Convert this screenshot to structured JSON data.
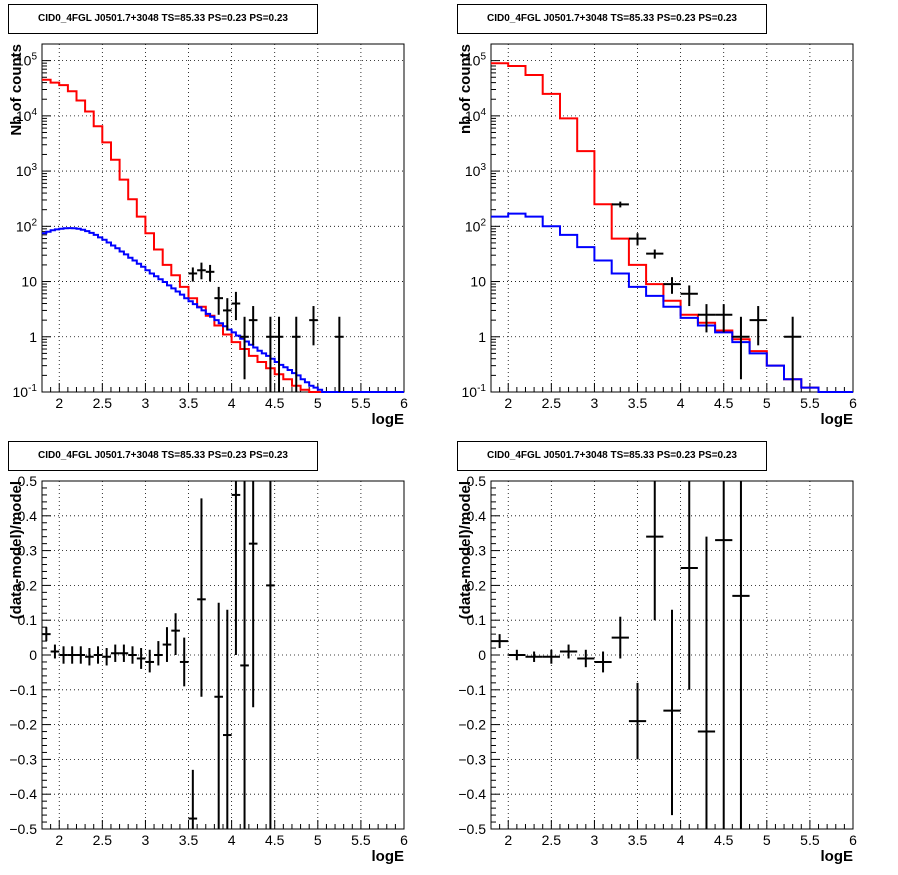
{
  "chart_data": [
    {
      "type": "line",
      "title": "CID0_4FGL J0501.7+3048 TS=85.33 PS=0.23 PS=0.23",
      "xlabel": "logE",
      "ylabel": "Nb of counts",
      "xlim": [
        1.8,
        6
      ],
      "ylim": [
        0.1,
        200000
      ],
      "yscale": "log",
      "grid": true,
      "xticks": [
        "2",
        "2.5",
        "3",
        "3.5",
        "4",
        "4.5",
        "5",
        "5.5",
        "6"
      ],
      "yticks": [
        "10^-1",
        "1",
        "10",
        "10^2",
        "10^3",
        "10^4",
        "10^5"
      ],
      "series": [
        {
          "color": "#ff0000",
          "style": "step",
          "bin_width": 0.1,
          "x": [
            1.8,
            1.9,
            2.0,
            2.1,
            2.2,
            2.3,
            2.4,
            2.5,
            2.6,
            2.7,
            2.8,
            2.9,
            3.0,
            3.1,
            3.2,
            3.3,
            3.4,
            3.5,
            3.6,
            3.7,
            3.8,
            3.9,
            4.0,
            4.1,
            4.2,
            4.3,
            4.4,
            4.5,
            4.6,
            4.7,
            4.8,
            4.9,
            5.0,
            5.1,
            5.2,
            5.3,
            5.4,
            5.5,
            5.6,
            5.7,
            5.8,
            5.9
          ],
          "y": [
            45000,
            40000,
            36000,
            28000,
            19000,
            12000,
            6500,
            3300,
            1600,
            700,
            310,
            150,
            75,
            38,
            20,
            13,
            8,
            5,
            3.5,
            2.4,
            1.6,
            1.1,
            0.8,
            0.6,
            0.45,
            0.35,
            0.27,
            0.21,
            0.17,
            0.13,
            0.11,
            0.1,
            0.1,
            0.1,
            0.1,
            0.1,
            0.1,
            0.1,
            0.1,
            0.1,
            0.1,
            0.1
          ]
        },
        {
          "color": "#0000ff",
          "style": "step",
          "bin_width": 0.05,
          "x": [
            1.8,
            1.85,
            1.9,
            1.95,
            2.0,
            2.05,
            2.1,
            2.15,
            2.2,
            2.25,
            2.3,
            2.35,
            2.4,
            2.45,
            2.5,
            2.55,
            2.6,
            2.65,
            2.7,
            2.75,
            2.8,
            2.85,
            2.9,
            2.95,
            3.0,
            3.05,
            3.1,
            3.15,
            3.2,
            3.25,
            3.3,
            3.35,
            3.4,
            3.45,
            3.5,
            3.55,
            3.6,
            3.65,
            3.7,
            3.75,
            3.8,
            3.85,
            3.9,
            3.95,
            4.0,
            4.05,
            4.1,
            4.15,
            4.2,
            4.25,
            4.3,
            4.35,
            4.4,
            4.45,
            4.5,
            4.55,
            4.6,
            4.65,
            4.7,
            4.75,
            4.8,
            4.85,
            4.9,
            4.95,
            5.0,
            5.05,
            5.1,
            5.15,
            5.2,
            5.25,
            5.3,
            5.35,
            5.4,
            5.45,
            5.5,
            5.55,
            5.6,
            5.65,
            5.7,
            5.75,
            5.8,
            5.85,
            5.9,
            5.95
          ],
          "y": [
            75,
            80,
            85,
            88,
            90,
            92,
            93,
            92,
            90,
            87,
            82,
            76,
            70,
            63,
            57,
            51,
            45,
            40,
            35,
            31,
            27,
            24,
            21,
            18.5,
            16,
            14,
            12.5,
            11,
            9.8,
            8.5,
            7.5,
            6.6,
            5.8,
            5,
            4.4,
            3.9,
            3.4,
            3,
            2.6,
            2.3,
            2,
            1.75,
            1.55,
            1.35,
            1.2,
            1.05,
            0.92,
            0.82,
            0.72,
            0.64,
            0.56,
            0.5,
            0.45,
            0.4,
            0.35,
            0.31,
            0.28,
            0.25,
            0.22,
            0.2,
            0.17,
            0.15,
            0.13,
            0.12,
            0.11,
            0.1,
            0.1,
            0.1,
            0.1,
            0.1,
            0.1,
            0.1,
            0.1,
            0.1,
            0.1,
            0.1,
            0.1,
            0.1,
            0.1,
            0.1,
            0.1,
            0.1,
            0.1,
            0.1
          ]
        }
      ],
      "points": [
        {
          "x": 3.55,
          "y": 14,
          "ylo": 10,
          "yhi": 18,
          "xerr": 0.05
        },
        {
          "x": 3.65,
          "y": 16,
          "ylo": 11,
          "yhi": 22,
          "xerr": 0.05
        },
        {
          "x": 3.75,
          "y": 15,
          "ylo": 10,
          "yhi": 20,
          "xerr": 0.05
        },
        {
          "x": 3.85,
          "y": 5,
          "ylo": 2.5,
          "yhi": 8,
          "xerr": 0.05
        },
        {
          "x": 3.95,
          "y": 3,
          "ylo": 1.3,
          "yhi": 5,
          "xerr": 0.05
        },
        {
          "x": 4.05,
          "y": 4,
          "ylo": 2,
          "yhi": 6.5,
          "xerr": 0.05
        },
        {
          "x": 4.15,
          "y": 1,
          "ylo": 0.17,
          "yhi": 2.3,
          "xerr": 0.05
        },
        {
          "x": 4.25,
          "y": 2,
          "ylo": 0.7,
          "yhi": 3.6,
          "xerr": 0.05
        },
        {
          "x": 4.45,
          "y": 1,
          "ylo": 0.1,
          "yhi": 2.3,
          "xerr": 0.05
        },
        {
          "x": 4.55,
          "y": 1,
          "ylo": 0.1,
          "yhi": 2.3,
          "xerr": 0.05
        },
        {
          "x": 4.75,
          "y": 1,
          "ylo": 0.1,
          "yhi": 2.3,
          "xerr": 0.05
        },
        {
          "x": 4.95,
          "y": 2,
          "ylo": 0.7,
          "yhi": 3.6,
          "xerr": 0.05
        },
        {
          "x": 5.25,
          "y": 1,
          "ylo": 0.1,
          "yhi": 2.3,
          "xerr": 0.05
        }
      ]
    },
    {
      "type": "line",
      "title": "CID0_4FGL J0501.7+3048 TS=85.33 PS=0.23 PS=0.23",
      "xlabel": "logE",
      "ylabel": "nb of counts",
      "xlim": [
        1.8,
        6
      ],
      "ylim": [
        0.1,
        200000
      ],
      "yscale": "log",
      "grid": true,
      "xticks": [
        "2",
        "2.5",
        "3",
        "3.5",
        "4",
        "4.5",
        "5",
        "5.5",
        "6"
      ],
      "yticks": [
        "10^-1",
        "1",
        "10",
        "10^2",
        "10^3",
        "10^4",
        "10^5"
      ],
      "series": [
        {
          "color": "#ff0000",
          "style": "step",
          "bin_width": 0.2,
          "x": [
            1.8,
            2.0,
            2.2,
            2.4,
            2.6,
            2.8,
            3.0,
            3.2,
            3.4,
            3.6,
            3.8,
            4.0,
            4.2,
            4.4,
            4.6,
            4.8,
            5.0,
            5.2,
            5.4,
            5.6,
            5.8
          ],
          "y": [
            90000,
            80000,
            55000,
            25000,
            9000,
            2300,
            250,
            60,
            20,
            9,
            4.5,
            2.5,
            1.8,
            1.3,
            0.9,
            0.55,
            0.3,
            0.17,
            0.12,
            0.1,
            0.1
          ]
        },
        {
          "color": "#0000ff",
          "style": "step",
          "bin_width": 0.2,
          "x": [
            1.8,
            2.0,
            2.2,
            2.4,
            2.6,
            2.8,
            3.0,
            3.2,
            3.4,
            3.6,
            3.8,
            4.0,
            4.2,
            4.4,
            4.6,
            4.8,
            5.0,
            5.2,
            5.4,
            5.6,
            5.8
          ],
          "y": [
            150,
            170,
            150,
            100,
            70,
            42,
            24,
            14,
            8,
            5.5,
            3.5,
            2.2,
            1.6,
            1.2,
            0.8,
            0.5,
            0.3,
            0.17,
            0.12,
            0.1,
            0.1
          ]
        }
      ],
      "points": [
        {
          "x": 3.3,
          "y": 250,
          "ylo": 220,
          "yhi": 280,
          "xerr": 0.1
        },
        {
          "x": 3.5,
          "y": 60,
          "ylo": 45,
          "yhi": 75,
          "xerr": 0.1
        },
        {
          "x": 3.7,
          "y": 32,
          "ylo": 26,
          "yhi": 38,
          "xerr": 0.1
        },
        {
          "x": 3.9,
          "y": 9,
          "ylo": 6,
          "yhi": 12,
          "xerr": 0.1
        },
        {
          "x": 4.1,
          "y": 6,
          "ylo": 3.6,
          "yhi": 8.5,
          "xerr": 0.1
        },
        {
          "x": 4.3,
          "y": 2.5,
          "ylo": 1.2,
          "yhi": 3.9,
          "xerr": 0.1
        },
        {
          "x": 4.5,
          "y": 2.5,
          "ylo": 1.2,
          "yhi": 3.9,
          "xerr": 0.1
        },
        {
          "x": 4.7,
          "y": 1,
          "ylo": 0.17,
          "yhi": 2.3,
          "xerr": 0.1
        },
        {
          "x": 4.9,
          "y": 2,
          "ylo": 0.7,
          "yhi": 3.6,
          "xerr": 0.1
        },
        {
          "x": 5.3,
          "y": 1,
          "ylo": 0.1,
          "yhi": 2.3,
          "xerr": 0.1
        }
      ]
    },
    {
      "type": "scatter",
      "title": "CID0_4FGL J0501.7+3048 TS=85.33 PS=0.23 PS=0.23",
      "xlabel": "logE",
      "ylabel": "(data-model)/model",
      "xlim": [
        1.8,
        6
      ],
      "ylim": [
        -0.5,
        0.5
      ],
      "grid": true,
      "xticks": [
        "2",
        "2.5",
        "3",
        "3.5",
        "4",
        "4.5",
        "5",
        "5.5",
        "6"
      ],
      "yticks": [
        "-0.5",
        "-0.4",
        "-0.3",
        "-0.2",
        "-0.1",
        "0",
        "0.1",
        "0.2",
        "0.3",
        "0.4",
        "0.5"
      ],
      "points": [
        {
          "x": 1.85,
          "y": 0.06,
          "ylo": 0.04,
          "yhi": 0.08,
          "xerr": 0.05
        },
        {
          "x": 1.95,
          "y": 0.01,
          "ylo": -0.01,
          "yhi": 0.03,
          "xerr": 0.05
        },
        {
          "x": 2.05,
          "y": 0.0,
          "ylo": -0.025,
          "yhi": 0.025,
          "xerr": 0.05
        },
        {
          "x": 2.15,
          "y": 0.0,
          "ylo": -0.025,
          "yhi": 0.025,
          "xerr": 0.05
        },
        {
          "x": 2.25,
          "y": 0.0,
          "ylo": -0.025,
          "yhi": 0.025,
          "xerr": 0.05
        },
        {
          "x": 2.35,
          "y": -0.005,
          "ylo": -0.03,
          "yhi": 0.02,
          "xerr": 0.05
        },
        {
          "x": 2.45,
          "y": 0.0,
          "ylo": -0.025,
          "yhi": 0.025,
          "xerr": 0.05
        },
        {
          "x": 2.55,
          "y": -0.005,
          "ylo": -0.03,
          "yhi": 0.02,
          "xerr": 0.05
        },
        {
          "x": 2.65,
          "y": 0.005,
          "ylo": -0.02,
          "yhi": 0.03,
          "xerr": 0.05
        },
        {
          "x": 2.75,
          "y": 0.005,
          "ylo": -0.02,
          "yhi": 0.03,
          "xerr": 0.05
        },
        {
          "x": 2.85,
          "y": 0.0,
          "ylo": -0.025,
          "yhi": 0.025,
          "xerr": 0.05
        },
        {
          "x": 2.95,
          "y": -0.01,
          "ylo": -0.04,
          "yhi": 0.02,
          "xerr": 0.05
        },
        {
          "x": 3.05,
          "y": -0.02,
          "ylo": -0.05,
          "yhi": 0.015,
          "xerr": 0.05
        },
        {
          "x": 3.15,
          "y": 0.0,
          "ylo": -0.03,
          "yhi": 0.04,
          "xerr": 0.05
        },
        {
          "x": 3.25,
          "y": 0.03,
          "ylo": -0.02,
          "yhi": 0.08,
          "xerr": 0.05
        },
        {
          "x": 3.35,
          "y": 0.07,
          "ylo": 0.0,
          "yhi": 0.12,
          "xerr": 0.05
        },
        {
          "x": 3.45,
          "y": -0.02,
          "ylo": -0.09,
          "yhi": 0.05,
          "xerr": 0.05
        },
        {
          "x": 3.55,
          "y": -0.47,
          "ylo": -0.5,
          "yhi": -0.33,
          "xerr": 0.05
        },
        {
          "x": 3.65,
          "y": 0.16,
          "ylo": -0.12,
          "yhi": 0.45,
          "xerr": 0.05
        },
        {
          "x": 3.85,
          "y": -0.12,
          "ylo": -0.5,
          "yhi": 0.15,
          "xerr": 0.05
        },
        {
          "x": 3.95,
          "y": -0.23,
          "ylo": -0.5,
          "yhi": 0.13,
          "xerr": 0.05
        },
        {
          "x": 4.05,
          "y": 0.46,
          "ylo": 0.0,
          "yhi": 0.5,
          "xerr": 0.05
        },
        {
          "x": 4.15,
          "y": -0.03,
          "ylo": -0.5,
          "yhi": 0.5,
          "xerr": 0.05
        },
        {
          "x": 4.25,
          "y": 0.32,
          "ylo": -0.15,
          "yhi": 0.5,
          "xerr": 0.05
        },
        {
          "x": 4.45,
          "y": 0.2,
          "ylo": -0.5,
          "yhi": 0.5,
          "xerr": 0.05
        }
      ]
    },
    {
      "type": "scatter",
      "title": "CID0_4FGL J0501.7+3048 TS=85.33 PS=0.23 PS=0.23",
      "xlabel": "logE",
      "ylabel": "(data-model)/model",
      "xlim": [
        1.8,
        6
      ],
      "ylim": [
        -0.5,
        0.5
      ],
      "grid": true,
      "xticks": [
        "2",
        "2.5",
        "3",
        "3.5",
        "4",
        "4.5",
        "5",
        "5.5",
        "6"
      ],
      "yticks": [
        "-0.5",
        "-0.4",
        "-0.3",
        "-0.2",
        "-0.1",
        "0",
        "0.1",
        "0.2",
        "0.3",
        "0.4",
        "0.5"
      ],
      "points": [
        {
          "x": 1.9,
          "y": 0.04,
          "ylo": 0.02,
          "yhi": 0.06,
          "xerr": 0.1
        },
        {
          "x": 2.1,
          "y": 0.0,
          "ylo": -0.015,
          "yhi": 0.015,
          "xerr": 0.1
        },
        {
          "x": 2.3,
          "y": -0.005,
          "ylo": -0.02,
          "yhi": 0.01,
          "xerr": 0.1
        },
        {
          "x": 2.5,
          "y": -0.005,
          "ylo": -0.025,
          "yhi": 0.015,
          "xerr": 0.1
        },
        {
          "x": 2.7,
          "y": 0.01,
          "ylo": -0.01,
          "yhi": 0.03,
          "xerr": 0.1
        },
        {
          "x": 2.9,
          "y": -0.01,
          "ylo": -0.035,
          "yhi": 0.015,
          "xerr": 0.1
        },
        {
          "x": 3.1,
          "y": -0.02,
          "ylo": -0.05,
          "yhi": 0.01,
          "xerr": 0.1
        },
        {
          "x": 3.3,
          "y": 0.05,
          "ylo": -0.01,
          "yhi": 0.11,
          "xerr": 0.1
        },
        {
          "x": 3.5,
          "y": -0.19,
          "ylo": -0.3,
          "yhi": -0.08,
          "xerr": 0.1
        },
        {
          "x": 3.7,
          "y": 0.34,
          "ylo": 0.1,
          "yhi": 0.5,
          "xerr": 0.1
        },
        {
          "x": 3.9,
          "y": -0.16,
          "ylo": -0.46,
          "yhi": 0.13,
          "xerr": 0.1
        },
        {
          "x": 4.1,
          "y": 0.25,
          "ylo": -0.1,
          "yhi": 0.5,
          "xerr": 0.1
        },
        {
          "x": 4.3,
          "y": -0.22,
          "ylo": -0.5,
          "yhi": 0.34,
          "xerr": 0.1
        },
        {
          "x": 4.5,
          "y": 0.33,
          "ylo": -0.5,
          "yhi": 0.5,
          "xerr": 0.1
        },
        {
          "x": 4.7,
          "y": 0.17,
          "ylo": -0.5,
          "yhi": 0.5,
          "xerr": 0.1
        }
      ]
    }
  ]
}
